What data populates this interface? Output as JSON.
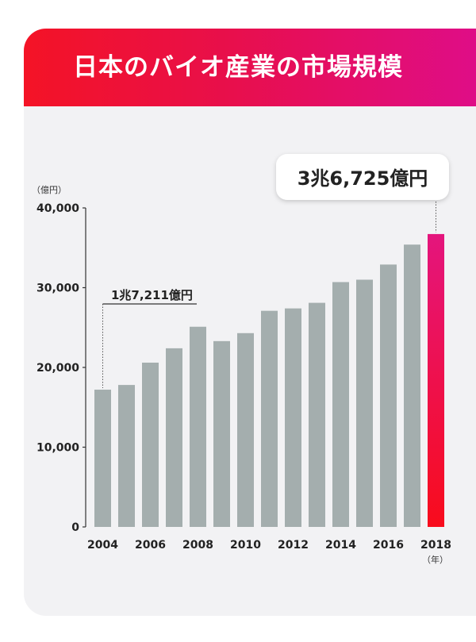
{
  "title": "日本のバイオ産業の市場規模",
  "colors": {
    "bar": "#a4aeae",
    "highlight_top": "#e4157d",
    "highlight_bottom": "#f80c1c",
    "axis": "#333333",
    "text": "#222222"
  },
  "chart_data": {
    "type": "bar",
    "categories": [
      "2004",
      "2005",
      "2006",
      "2007",
      "2008",
      "2009",
      "2010",
      "2011",
      "2012",
      "2013",
      "2014",
      "2015",
      "2016",
      "2017",
      "2018"
    ],
    "values": [
      17211,
      17800,
      20600,
      22400,
      25100,
      23300,
      24300,
      27100,
      27400,
      28100,
      30700,
      31000,
      32900,
      35400,
      36725
    ],
    "x_tick_labels": [
      "2004",
      "",
      "2006",
      "",
      "2008",
      "",
      "2010",
      "",
      "2012",
      "",
      "2014",
      "",
      "2016",
      "",
      "2018"
    ],
    "y_ticks": [
      "0",
      "10,000",
      "20,000",
      "30,000",
      "40,000"
    ],
    "ylim": [
      0,
      40000
    ],
    "ylabel": "（億円）",
    "xlabel": "（年）",
    "annotations": {
      "start": "1兆7,211億円",
      "end": "3兆6,725億円"
    },
    "highlight_index": 14
  }
}
